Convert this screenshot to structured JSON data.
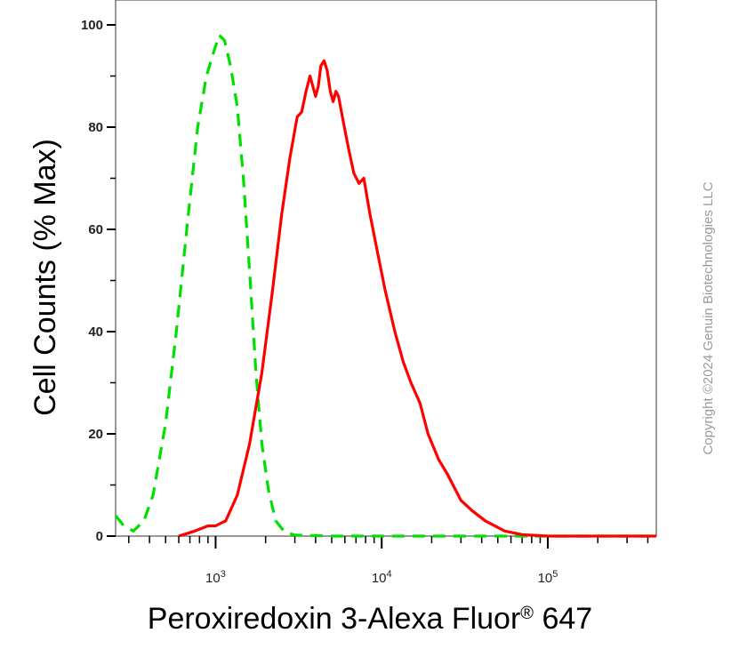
{
  "chart_data": {
    "type": "line",
    "xlabel": "Peroxiredoxin 3-Alexa Fluor",
    "xlabel_sup": "®",
    "xlabel_suffix": " 647",
    "ylabel": "Cell Counts (% Max)",
    "x_scale": "log",
    "xlim": [
      250,
      450000
    ],
    "ylim": [
      0,
      100
    ],
    "yticks": [
      0,
      20,
      40,
      60,
      80,
      100
    ],
    "xticks": [
      {
        "value": 1000,
        "base": "10",
        "exp": "3"
      },
      {
        "value": 10000,
        "base": "10",
        "exp": "4"
      },
      {
        "value": 100000,
        "base": "10",
        "exp": "5"
      }
    ],
    "grid": false,
    "series": [
      {
        "color": "#00e000",
        "style": "dashed",
        "points": [
          [
            250,
            4
          ],
          [
            280,
            2
          ],
          [
            320,
            1
          ],
          [
            370,
            3
          ],
          [
            420,
            8
          ],
          [
            500,
            22
          ],
          [
            580,
            40
          ],
          [
            680,
            62
          ],
          [
            780,
            80
          ],
          [
            880,
            90
          ],
          [
            980,
            95
          ],
          [
            1050,
            98
          ],
          [
            1130,
            97
          ],
          [
            1230,
            92
          ],
          [
            1350,
            84
          ],
          [
            1470,
            70
          ],
          [
            1600,
            52
          ],
          [
            1750,
            32
          ],
          [
            1900,
            18
          ],
          [
            2080,
            9
          ],
          [
            2300,
            3
          ],
          [
            2600,
            0.8
          ],
          [
            3000,
            0.2
          ],
          [
            5000,
            0
          ],
          [
            20000,
            0
          ],
          [
            100000,
            0
          ],
          [
            450000,
            0
          ]
        ]
      },
      {
        "color": "#ff0000",
        "style": "solid",
        "points": [
          [
            600,
            0
          ],
          [
            750,
            1
          ],
          [
            900,
            2
          ],
          [
            1000,
            2
          ],
          [
            1150,
            3
          ],
          [
            1350,
            8
          ],
          [
            1600,
            18
          ],
          [
            1900,
            32
          ],
          [
            2200,
            48
          ],
          [
            2500,
            63
          ],
          [
            2800,
            74
          ],
          [
            3100,
            82
          ],
          [
            3300,
            83
          ],
          [
            3500,
            87
          ],
          [
            3700,
            90
          ],
          [
            3850,
            88
          ],
          [
            4000,
            86
          ],
          [
            4150,
            88
          ],
          [
            4300,
            92
          ],
          [
            4500,
            93
          ],
          [
            4700,
            91
          ],
          [
            4900,
            87
          ],
          [
            5100,
            85
          ],
          [
            5300,
            87
          ],
          [
            5500,
            86
          ],
          [
            5800,
            82
          ],
          [
            6300,
            76
          ],
          [
            6800,
            71
          ],
          [
            7300,
            69
          ],
          [
            7800,
            70
          ],
          [
            8500,
            63
          ],
          [
            9500,
            55
          ],
          [
            10500,
            48
          ],
          [
            12000,
            40
          ],
          [
            13500,
            34
          ],
          [
            15000,
            30
          ],
          [
            17000,
            26
          ],
          [
            19000,
            20
          ],
          [
            22000,
            15
          ],
          [
            25000,
            12
          ],
          [
            30000,
            7
          ],
          [
            35000,
            5
          ],
          [
            42000,
            3
          ],
          [
            55000,
            1
          ],
          [
            70000,
            0.3
          ],
          [
            100000,
            0
          ],
          [
            450000,
            0
          ]
        ]
      }
    ]
  },
  "watermark": "Copyright ©2024 Genuin Biotechnologies LLC"
}
